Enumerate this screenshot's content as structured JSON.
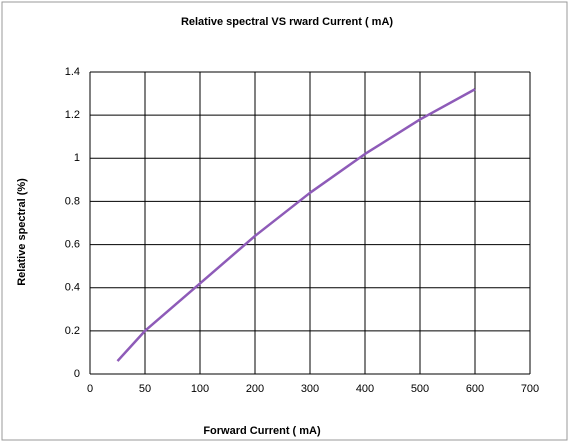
{
  "chart_data": {
    "type": "line",
    "title": "Relative spectral  VS   rward  Current ( mA)",
    "x_label": "Forward  Current ( mA)",
    "y_label": "Relative spectral  (%)",
    "x": [
      25,
      50,
      100,
      200,
      300,
      400,
      500,
      600
    ],
    "series": [
      {
        "name": "Relative spectral",
        "color": "#8e5bb8",
        "values": [
          0.06,
          0.2,
          0.42,
          0.64,
          0.84,
          1.02,
          1.18,
          1.32
        ]
      }
    ],
    "xlim": [
      0,
      700
    ],
    "xticks": [
      0,
      50,
      100,
      200,
      300,
      400,
      500,
      600,
      700
    ],
    "ylim": [
      0,
      1.4
    ],
    "yticks": [
      0,
      0.2,
      0.4,
      0.6,
      0.8,
      1,
      1.2,
      1.4
    ],
    "grid": true
  }
}
